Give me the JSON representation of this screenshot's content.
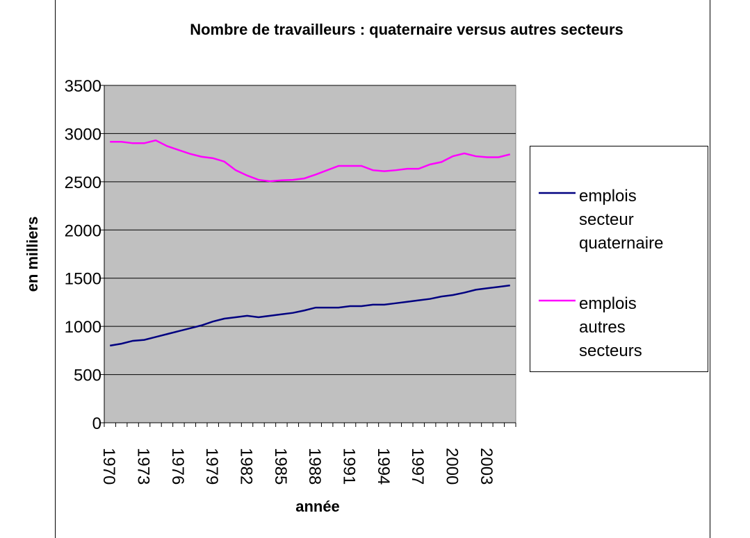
{
  "chart_data": {
    "type": "line",
    "title": "Nombre de travailleurs : quaternaire versus autres secteurs",
    "x_label": "année",
    "y_label": "en milliers",
    "categories": [
      "1970",
      null,
      null,
      "1973",
      null,
      null,
      "1976",
      null,
      null,
      "1979",
      null,
      null,
      "1982",
      null,
      null,
      "1985",
      null,
      null,
      "1988",
      null,
      null,
      "1991",
      null,
      null,
      "1994",
      null,
      null,
      "1997",
      null,
      null,
      "2000",
      null,
      null,
      "2003",
      null,
      null
    ],
    "series": [
      {
        "name": "emplois secteur quaternaire",
        "color": "#000080",
        "values": [
          800,
          820,
          850,
          860,
          890,
          920,
          950,
          980,
          1010,
          1050,
          1080,
          1095,
          1110,
          1095,
          1110,
          1125,
          1140,
          1165,
          1195,
          1195,
          1195,
          1210,
          1210,
          1225,
          1225,
          1240,
          1255,
          1270,
          1285,
          1310,
          1325,
          1350,
          1380,
          1395,
          1410,
          1425
        ]
      },
      {
        "name": "emplois autres secteurs",
        "color": "#ff00ff",
        "values": [
          2915,
          2915,
          2900,
          2900,
          2930,
          2870,
          2830,
          2790,
          2760,
          2745,
          2710,
          2620,
          2565,
          2520,
          2505,
          2515,
          2520,
          2535,
          2575,
          2620,
          2665,
          2665,
          2665,
          2620,
          2610,
          2620,
          2635,
          2635,
          2680,
          2705,
          2765,
          2795,
          2765,
          2755,
          2755,
          2785
        ]
      }
    ],
    "ylim": [
      0,
      3500
    ],
    "yticks": [
      0,
      500,
      1000,
      1500,
      2000,
      2500,
      3000,
      3500
    ],
    "grid": true,
    "legend": "right",
    "plot_background": "#c0c0c0"
  }
}
